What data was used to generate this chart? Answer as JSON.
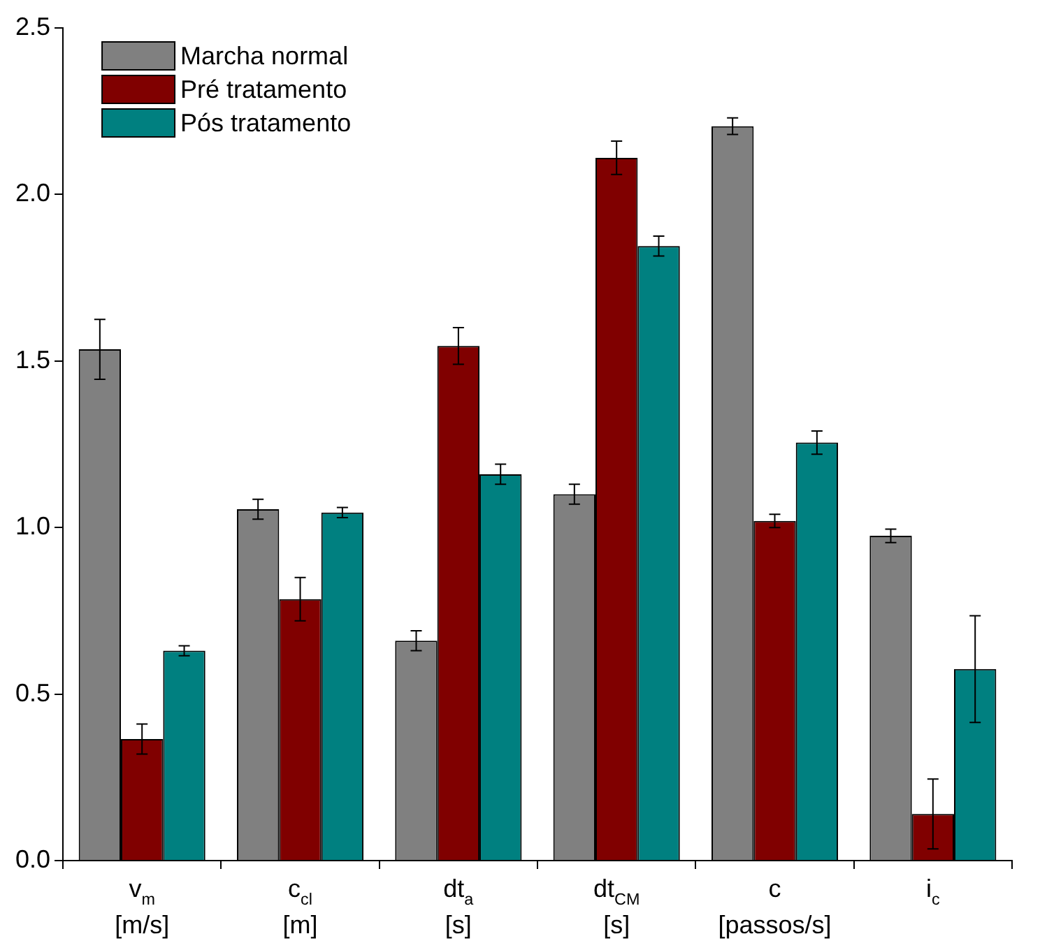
{
  "chart_data": {
    "type": "bar",
    "categories": [
      "v$_{m}$\n[m/s]",
      "c$_{cl}$\n[m]",
      "dt$_{a}$\n[s]",
      "dt$_{CM}$\n[s]",
      "c\n[passos/s]",
      "i$_{c}$"
    ],
    "series": [
      {
        "name": "Marcha normal",
        "color": "#808080",
        "values": [
          1.535,
          1.055,
          0.66,
          1.1,
          2.205,
          0.975
        ],
        "errors": [
          0.09,
          0.03,
          0.03,
          0.03,
          0.025,
          0.02
        ]
      },
      {
        "name": "Pré tratamento",
        "color": "#800000",
        "values": [
          0.365,
          0.785,
          1.545,
          2.11,
          1.02,
          0.14
        ],
        "errors": [
          0.045,
          0.065,
          0.055,
          0.05,
          0.02,
          0.105
        ]
      },
      {
        "name": "Pós tratamento",
        "color": "#008080",
        "values": [
          0.63,
          1.045,
          1.16,
          1.845,
          1.255,
          0.575
        ],
        "errors": [
          0.015,
          0.015,
          0.03,
          0.03,
          0.035,
          0.16
        ]
      }
    ],
    "ylim": [
      0,
      2.5
    ],
    "yticks": [
      {
        "value": 0,
        "label": "0.0"
      },
      {
        "value": 0.5,
        "label": "0.5"
      },
      {
        "value": 1,
        "label": "1.0"
      },
      {
        "value": 1.5,
        "label": "1.5"
      },
      {
        "value": 2,
        "label": "2.0"
      },
      {
        "value": 2.5,
        "label": "2.5"
      }
    ],
    "grid": false,
    "legend": "top left"
  }
}
